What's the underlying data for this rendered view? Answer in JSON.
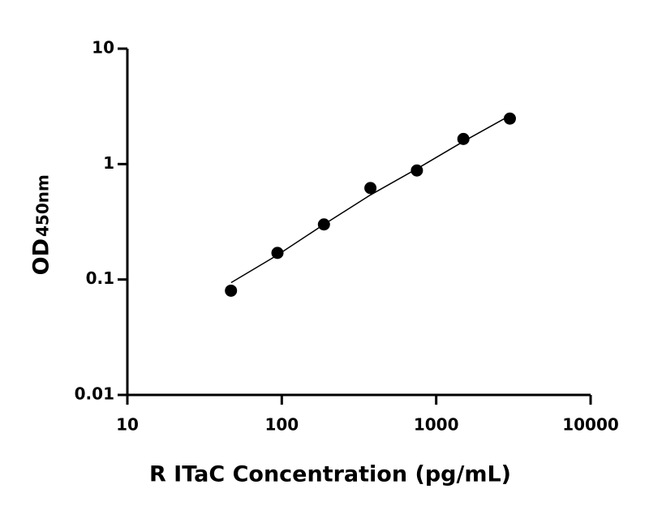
{
  "chart_data": {
    "type": "scatter",
    "x_label": "R ITaC Concentration (pg/mL)",
    "y_label": "OD",
    "y_label_subscript": "450nm",
    "x_log": true,
    "y_log": true,
    "xlim": [
      10,
      10000
    ],
    "xticks": [
      10,
      100,
      1000,
      10000
    ],
    "ylim": [
      0.01,
      10
    ],
    "yticks": [
      0.01,
      0.1,
      1,
      10
    ],
    "grid": false,
    "series": [
      {
        "style": "markers",
        "color": "#000000",
        "x": [
          46.875,
          93.75,
          187.5,
          375,
          750,
          1500,
          3000
        ],
        "values": [
          0.08,
          0.17,
          0.3,
          0.62,
          0.88,
          1.65,
          2.48
        ]
      },
      {
        "style": "line",
        "color": "#000000",
        "x": [
          47,
          93.75,
          187.5,
          375,
          750,
          1500,
          3000
        ],
        "values": [
          0.094,
          0.163,
          0.3,
          0.54,
          0.91,
          1.57,
          2.63
        ]
      }
    ]
  }
}
